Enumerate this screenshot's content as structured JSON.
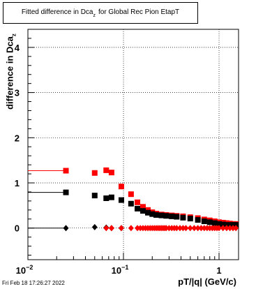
{
  "title": {
    "main": "Fitted difference in Dca",
    "subscript": "z",
    "suffix": "for Global Rec Pion EtapT"
  },
  "timestamp": "Fri Feb 18 17:26:27 2022",
  "chart_data": {
    "type": "scatter",
    "xlabel": "pT/|q| (GeV/c)",
    "ylabel_main": "difference in Dca",
    "ylabel_sub": "z",
    "xscale": "log",
    "xlim": [
      0.01,
      1.6
    ],
    "ylim": [
      -0.7,
      4.4
    ],
    "grid": true,
    "xticks": [
      {
        "v": 0.01,
        "base": "10",
        "exp": "−2"
      },
      {
        "v": 0.1,
        "base": "10",
        "exp": "−1"
      },
      {
        "v": 1,
        "base": "1",
        "exp": ""
      }
    ],
    "yticks": [
      0,
      1,
      2,
      3,
      4
    ],
    "series": [
      {
        "color": "#ff0000",
        "marker": "square",
        "x": [
          0.025,
          0.05,
          0.066,
          0.075,
          0.095,
          0.12,
          0.14,
          0.16,
          0.18,
          0.2,
          0.22,
          0.25,
          0.28,
          0.32,
          0.36,
          0.42,
          0.5,
          0.6,
          0.7,
          0.8,
          0.9,
          1.0,
          1.1,
          1.2,
          1.3,
          1.4,
          1.5
        ],
        "y": [
          1.27,
          1.22,
          1.28,
          1.23,
          0.92,
          0.75,
          0.57,
          0.47,
          0.4,
          0.35,
          0.32,
          0.3,
          0.29,
          0.28,
          0.27,
          0.26,
          0.24,
          0.22,
          0.19,
          0.17,
          0.15,
          0.13,
          0.12,
          0.11,
          0.1,
          0.09,
          0.09
        ]
      },
      {
        "color": "#000000",
        "marker": "square",
        "x": [
          0.025,
          0.05,
          0.066,
          0.075,
          0.095,
          0.12,
          0.14,
          0.16,
          0.18,
          0.2,
          0.22,
          0.25,
          0.28,
          0.32,
          0.36,
          0.42,
          0.5,
          0.6,
          0.7,
          0.8,
          0.9,
          1.0,
          1.1,
          1.2,
          1.3,
          1.4,
          1.5
        ],
        "y": [
          0.79,
          0.72,
          0.66,
          0.68,
          0.62,
          0.54,
          0.43,
          0.38,
          0.34,
          0.31,
          0.29,
          0.28,
          0.27,
          0.26,
          0.25,
          0.23,
          0.21,
          0.18,
          0.15,
          0.13,
          0.11,
          0.09,
          0.08,
          0.07,
          0.07,
          0.07,
          0.07
        ]
      },
      {
        "color": "#000000",
        "marker": "diamond",
        "x": [
          0.025,
          0.05,
          0.066,
          0.075,
          0.095
        ],
        "y": [
          0.0,
          0.02,
          0.01,
          0.0,
          0.0
        ]
      },
      {
        "color": "#ff0000",
        "marker": "diamond",
        "x": [
          0.066,
          0.075,
          0.095,
          0.12,
          0.14,
          0.15,
          0.16,
          0.17,
          0.18,
          0.19,
          0.2,
          0.21,
          0.22,
          0.23,
          0.24,
          0.25,
          0.26,
          0.27,
          0.28,
          0.3,
          0.32,
          0.34,
          0.36,
          0.39,
          0.42,
          0.45,
          0.5,
          0.55,
          0.6,
          0.65,
          0.7,
          0.75,
          0.8,
          0.85,
          0.9,
          0.95,
          1.0,
          1.1,
          1.2,
          1.3,
          1.4,
          1.5
        ],
        "y": [
          0.0,
          0.0,
          0.0,
          0.0,
          0.0,
          0.0,
          0.0,
          0.0,
          0.0,
          0.0,
          0.0,
          0.0,
          0.0,
          0.0,
          0.0,
          0.0,
          0.0,
          0.0,
          0.0,
          0.0,
          0.0,
          0.0,
          0.0,
          0.0,
          0.0,
          0.0,
          0.0,
          0.0,
          0.0,
          0.0,
          0.0,
          0.0,
          0.0,
          0.0,
          0.0,
          0.0,
          0.0,
          0.0,
          0.0,
          0.0,
          0.0,
          0.0
        ]
      }
    ],
    "hlines": [
      {
        "y": 1.27,
        "x_from": 0.01,
        "x_to": 0.025,
        "color": "#ff0000"
      },
      {
        "y": 0.79,
        "x_from": 0.01,
        "x_to": 0.025,
        "color": "#000000"
      },
      {
        "y": 0.0,
        "x_from": 0.01,
        "x_to": 0.025,
        "color": "#000000"
      }
    ]
  }
}
